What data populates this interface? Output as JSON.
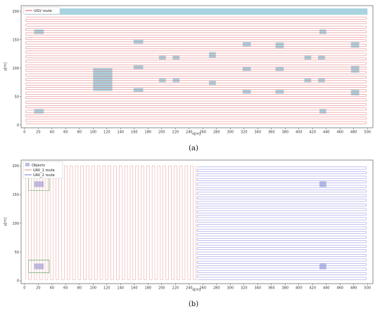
{
  "chart_data": [
    {
      "type": "line",
      "caption": "(a)",
      "xlabel": "x[m]",
      "ylabel": "y[m]",
      "xlim": [
        -5,
        508
      ],
      "ylim": [
        -5,
        210
      ],
      "xticks": [
        "0",
        "20",
        "40",
        "60",
        "80",
        "100",
        "120",
        "140",
        "160",
        "180",
        "200",
        "220",
        "240",
        "260",
        "280",
        "300",
        "320",
        "340",
        "360",
        "380",
        "400",
        "420",
        "440",
        "460",
        "480",
        "500"
      ],
      "yticks": [
        "0",
        "50",
        "100",
        "150",
        "200"
      ],
      "ytick_values": [
        0,
        50,
        100,
        150,
        200
      ],
      "legend": [
        {
          "name": "UGV route",
          "color": "#e05a5a"
        }
      ],
      "legend_position": "top-left",
      "grid": false,
      "colors": {
        "route": "#e05a5a",
        "obstacle": "#a9d3e0"
      },
      "obstacles": [
        {
          "x0": 0,
          "x1": 500,
          "y0": 194,
          "y1": 205
        },
        {
          "x0": 14,
          "x1": 28,
          "y0": 160,
          "y1": 168
        },
        {
          "x0": 100,
          "x1": 128,
          "y0": 60,
          "y1": 100
        },
        {
          "x0": 159,
          "x1": 173,
          "y0": 143,
          "y1": 150
        },
        {
          "x0": 159,
          "x1": 173,
          "y0": 98,
          "y1": 105
        },
        {
          "x0": 159,
          "x1": 173,
          "y0": 58,
          "y1": 65
        },
        {
          "x0": 196,
          "x1": 206,
          "y0": 115,
          "y1": 122
        },
        {
          "x0": 216,
          "x1": 226,
          "y0": 115,
          "y1": 122
        },
        {
          "x0": 196,
          "x1": 206,
          "y0": 75,
          "y1": 82
        },
        {
          "x0": 216,
          "x1": 226,
          "y0": 75,
          "y1": 82
        },
        {
          "x0": 269,
          "x1": 279,
          "y0": 118,
          "y1": 128
        },
        {
          "x0": 269,
          "x1": 279,
          "y0": 70,
          "y1": 78
        },
        {
          "x0": 318,
          "x1": 330,
          "y0": 138,
          "y1": 146
        },
        {
          "x0": 318,
          "x1": 330,
          "y0": 95,
          "y1": 102
        },
        {
          "x0": 318,
          "x1": 330,
          "y0": 55,
          "y1": 62
        },
        {
          "x0": 366,
          "x1": 378,
          "y0": 135,
          "y1": 145
        },
        {
          "x0": 366,
          "x1": 378,
          "y0": 95,
          "y1": 102
        },
        {
          "x0": 366,
          "x1": 378,
          "y0": 55,
          "y1": 62
        },
        {
          "x0": 408,
          "x1": 418,
          "y0": 115,
          "y1": 122
        },
        {
          "x0": 428,
          "x1": 438,
          "y0": 115,
          "y1": 122
        },
        {
          "x0": 408,
          "x1": 418,
          "y0": 75,
          "y1": 82
        },
        {
          "x0": 428,
          "x1": 438,
          "y0": 75,
          "y1": 82
        },
        {
          "x0": 430,
          "x1": 440,
          "y0": 160,
          "y1": 168
        },
        {
          "x0": 476,
          "x1": 488,
          "y0": 136,
          "y1": 146
        },
        {
          "x0": 476,
          "x1": 488,
          "y0": 92,
          "y1": 104
        },
        {
          "x0": 476,
          "x1": 488,
          "y0": 52,
          "y1": 62
        },
        {
          "x0": 14,
          "x1": 28,
          "y0": 20,
          "y1": 28
        },
        {
          "x0": 430,
          "x1": 440,
          "y0": 20,
          "y1": 28
        }
      ]
    },
    {
      "type": "line",
      "caption": "(b)",
      "xlabel": "x[m]",
      "ylabel": "y[m]",
      "xlim": [
        -5,
        508
      ],
      "ylim": [
        -5,
        210
      ],
      "xticks": [
        "0",
        "20",
        "40",
        "60",
        "80",
        "100",
        "120",
        "140",
        "160",
        "180",
        "200",
        "220",
        "240",
        "260",
        "280",
        "300",
        "320",
        "340",
        "360",
        "380",
        "400",
        "420",
        "440",
        "460",
        "480",
        "500"
      ],
      "yticks": [
        "0",
        "50",
        "100",
        "150",
        "200"
      ],
      "ytick_values": [
        0,
        50,
        100,
        150,
        200
      ],
      "legend": [
        {
          "name": "Objects",
          "color": "#b9bde6"
        },
        {
          "name": "UAV_1 route",
          "color": "#e58f8f"
        },
        {
          "name": "UAV_2 route",
          "color": "#7878d8"
        }
      ],
      "legend_position": "top-left",
      "grid": false,
      "colors": {
        "uav1": "#e58f8f",
        "uav2": "#7878d8",
        "object": "#b9bde6",
        "detour": "#4a9a4a"
      },
      "uav_split_x": 250,
      "objects": [
        {
          "x0": 14,
          "x1": 28,
          "y0": 163,
          "y1": 173
        },
        {
          "x0": 14,
          "x1": 28,
          "y0": 20,
          "y1": 30
        },
        {
          "x0": 430,
          "x1": 440,
          "y0": 163,
          "y1": 173
        },
        {
          "x0": 430,
          "x1": 440,
          "y0": 20,
          "y1": 30
        }
      ]
    }
  ]
}
